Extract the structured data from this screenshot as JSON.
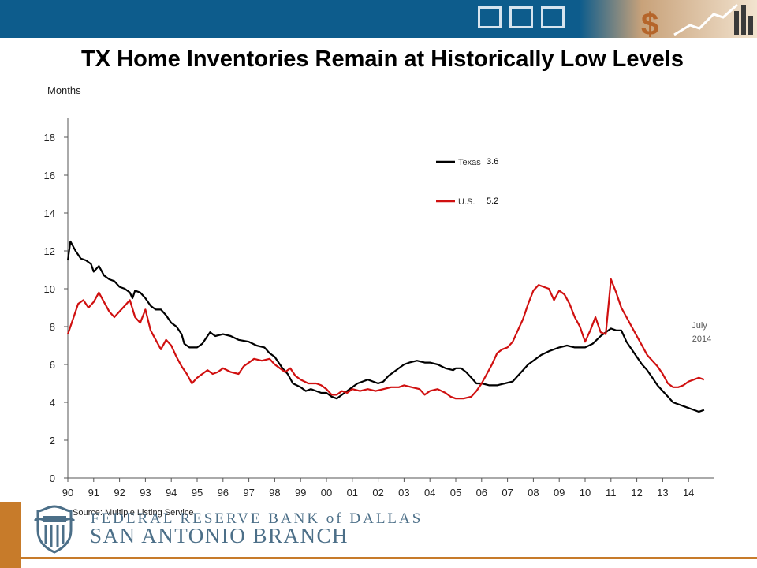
{
  "slide": {
    "title": "TX Home Inventories Remain at Historically Low Levels",
    "source": "Source: Multiple Listing Service",
    "footer_line1": "FEDERAL RESERVE BANK of DALLAS",
    "footer_line2": "SAN ANTONIO BRANCH"
  },
  "colors": {
    "topbar": "#0d5c8c",
    "accent_orange": "#c77b2a",
    "footer_text": "#4c6f88",
    "texas_series": "#000000",
    "us_series": "#d01010"
  },
  "chart_data": {
    "type": "line",
    "ylabel": "Months",
    "xlabel": "",
    "ylim": [
      0,
      19
    ],
    "yticks": [
      0,
      2,
      4,
      6,
      8,
      10,
      12,
      14,
      16,
      18
    ],
    "xlim": [
      1990,
      2015
    ],
    "xticks": [
      1990,
      1991,
      1992,
      1993,
      1994,
      1995,
      1996,
      1997,
      1998,
      1999,
      2000,
      2001,
      2002,
      2003,
      2004,
      2005,
      2006,
      2007,
      2008,
      2009,
      2010,
      2011,
      2012,
      2013,
      2014
    ],
    "xtick_labels": [
      "90",
      "91",
      "92",
      "93",
      "94",
      "95",
      "96",
      "97",
      "98",
      "99",
      "00",
      "01",
      "02",
      "03",
      "04",
      "05",
      "06",
      "07",
      "08",
      "09",
      "10",
      "11",
      "12",
      "13",
      "14"
    ],
    "grid": false,
    "legend": "top-center",
    "annotation": {
      "text_line1": "July",
      "text_line2": "2014",
      "x": 2014.5,
      "y": 7.7
    },
    "series": [
      {
        "name": "Texas",
        "latest_value_label": "3.6",
        "color": "#000000",
        "points": [
          [
            1990.0,
            11.5
          ],
          [
            1990.1,
            12.5
          ],
          [
            1990.3,
            12.0
          ],
          [
            1990.5,
            11.6
          ],
          [
            1990.7,
            11.5
          ],
          [
            1990.9,
            11.3
          ],
          [
            1991.0,
            10.9
          ],
          [
            1991.2,
            11.2
          ],
          [
            1991.4,
            10.7
          ],
          [
            1991.6,
            10.5
          ],
          [
            1991.8,
            10.4
          ],
          [
            1992.0,
            10.1
          ],
          [
            1992.2,
            10.0
          ],
          [
            1992.4,
            9.8
          ],
          [
            1992.5,
            9.5
          ],
          [
            1992.6,
            9.9
          ],
          [
            1992.8,
            9.8
          ],
          [
            1993.0,
            9.5
          ],
          [
            1993.2,
            9.1
          ],
          [
            1993.4,
            8.9
          ],
          [
            1993.6,
            8.9
          ],
          [
            1993.8,
            8.6
          ],
          [
            1994.0,
            8.2
          ],
          [
            1994.2,
            8.0
          ],
          [
            1994.4,
            7.6
          ],
          [
            1994.5,
            7.1
          ],
          [
            1994.7,
            6.9
          ],
          [
            1995.0,
            6.9
          ],
          [
            1995.2,
            7.1
          ],
          [
            1995.4,
            7.5
          ],
          [
            1995.5,
            7.7
          ],
          [
            1995.7,
            7.5
          ],
          [
            1996.0,
            7.6
          ],
          [
            1996.3,
            7.5
          ],
          [
            1996.6,
            7.3
          ],
          [
            1997.0,
            7.2
          ],
          [
            1997.3,
            7.0
          ],
          [
            1997.6,
            6.9
          ],
          [
            1997.8,
            6.6
          ],
          [
            1998.0,
            6.4
          ],
          [
            1998.3,
            5.8
          ],
          [
            1998.5,
            5.5
          ],
          [
            1998.7,
            5.0
          ],
          [
            1999.0,
            4.8
          ],
          [
            1999.2,
            4.6
          ],
          [
            1999.4,
            4.7
          ],
          [
            1999.6,
            4.6
          ],
          [
            1999.8,
            4.5
          ],
          [
            2000.0,
            4.5
          ],
          [
            2000.2,
            4.3
          ],
          [
            2000.4,
            4.2
          ],
          [
            2000.6,
            4.4
          ],
          [
            2000.8,
            4.6
          ],
          [
            2001.0,
            4.8
          ],
          [
            2001.2,
            5.0
          ],
          [
            2001.4,
            5.1
          ],
          [
            2001.6,
            5.2
          ],
          [
            2001.8,
            5.1
          ],
          [
            2002.0,
            5.0
          ],
          [
            2002.2,
            5.1
          ],
          [
            2002.4,
            5.4
          ],
          [
            2002.6,
            5.6
          ],
          [
            2002.8,
            5.8
          ],
          [
            2003.0,
            6.0
          ],
          [
            2003.2,
            6.1
          ],
          [
            2003.5,
            6.2
          ],
          [
            2003.8,
            6.1
          ],
          [
            2004.0,
            6.1
          ],
          [
            2004.3,
            6.0
          ],
          [
            2004.6,
            5.8
          ],
          [
            2004.9,
            5.7
          ],
          [
            2005.0,
            5.8
          ],
          [
            2005.2,
            5.8
          ],
          [
            2005.4,
            5.6
          ],
          [
            2005.6,
            5.3
          ],
          [
            2005.8,
            5.0
          ],
          [
            2006.0,
            5.0
          ],
          [
            2006.3,
            4.9
          ],
          [
            2006.6,
            4.9
          ],
          [
            2006.9,
            5.0
          ],
          [
            2007.2,
            5.1
          ],
          [
            2007.4,
            5.4
          ],
          [
            2007.6,
            5.7
          ],
          [
            2007.8,
            6.0
          ],
          [
            2008.0,
            6.2
          ],
          [
            2008.3,
            6.5
          ],
          [
            2008.6,
            6.7
          ],
          [
            2009.0,
            6.9
          ],
          [
            2009.3,
            7.0
          ],
          [
            2009.6,
            6.9
          ],
          [
            2010.0,
            6.9
          ],
          [
            2010.3,
            7.1
          ],
          [
            2010.6,
            7.5
          ],
          [
            2010.8,
            7.7
          ],
          [
            2011.0,
            7.9
          ],
          [
            2011.2,
            7.8
          ],
          [
            2011.4,
            7.8
          ],
          [
            2011.6,
            7.2
          ],
          [
            2011.8,
            6.8
          ],
          [
            2012.0,
            6.4
          ],
          [
            2012.2,
            6.0
          ],
          [
            2012.4,
            5.7
          ],
          [
            2012.6,
            5.3
          ],
          [
            2012.8,
            4.9
          ],
          [
            2013.0,
            4.6
          ],
          [
            2013.2,
            4.3
          ],
          [
            2013.4,
            4.0
          ],
          [
            2013.6,
            3.9
          ],
          [
            2013.8,
            3.8
          ],
          [
            2014.0,
            3.7
          ],
          [
            2014.2,
            3.6
          ],
          [
            2014.4,
            3.5
          ],
          [
            2014.6,
            3.6
          ]
        ]
      },
      {
        "name": "U.S.",
        "latest_value_label": "5.2",
        "color": "#d01010",
        "points": [
          [
            1990.0,
            7.6
          ],
          [
            1990.2,
            8.4
          ],
          [
            1990.4,
            9.2
          ],
          [
            1990.6,
            9.4
          ],
          [
            1990.8,
            9.0
          ],
          [
            1991.0,
            9.3
          ],
          [
            1991.2,
            9.8
          ],
          [
            1991.4,
            9.3
          ],
          [
            1991.6,
            8.8
          ],
          [
            1991.8,
            8.5
          ],
          [
            1992.0,
            8.8
          ],
          [
            1992.2,
            9.1
          ],
          [
            1992.4,
            9.4
          ],
          [
            1992.6,
            8.5
          ],
          [
            1992.8,
            8.2
          ],
          [
            1993.0,
            8.9
          ],
          [
            1993.2,
            7.8
          ],
          [
            1993.4,
            7.3
          ],
          [
            1993.6,
            6.8
          ],
          [
            1993.8,
            7.3
          ],
          [
            1994.0,
            7.0
          ],
          [
            1994.2,
            6.4
          ],
          [
            1994.4,
            5.9
          ],
          [
            1994.6,
            5.5
          ],
          [
            1994.8,
            5.0
          ],
          [
            1995.0,
            5.3
          ],
          [
            1995.2,
            5.5
          ],
          [
            1995.4,
            5.7
          ],
          [
            1995.6,
            5.5
          ],
          [
            1995.8,
            5.6
          ],
          [
            1996.0,
            5.8
          ],
          [
            1996.3,
            5.6
          ],
          [
            1996.6,
            5.5
          ],
          [
            1996.8,
            5.9
          ],
          [
            1997.0,
            6.1
          ],
          [
            1997.2,
            6.3
          ],
          [
            1997.5,
            6.2
          ],
          [
            1997.8,
            6.3
          ],
          [
            1998.0,
            6.0
          ],
          [
            1998.2,
            5.8
          ],
          [
            1998.4,
            5.6
          ],
          [
            1998.6,
            5.8
          ],
          [
            1998.8,
            5.4
          ],
          [
            1999.0,
            5.2
          ],
          [
            1999.3,
            5.0
          ],
          [
            1999.6,
            5.0
          ],
          [
            1999.8,
            4.9
          ],
          [
            2000.0,
            4.7
          ],
          [
            2000.2,
            4.4
          ],
          [
            2000.4,
            4.4
          ],
          [
            2000.6,
            4.6
          ],
          [
            2000.8,
            4.5
          ],
          [
            2001.0,
            4.7
          ],
          [
            2001.3,
            4.6
          ],
          [
            2001.6,
            4.7
          ],
          [
            2001.9,
            4.6
          ],
          [
            2002.2,
            4.7
          ],
          [
            2002.5,
            4.8
          ],
          [
            2002.8,
            4.8
          ],
          [
            2003.0,
            4.9
          ],
          [
            2003.3,
            4.8
          ],
          [
            2003.6,
            4.7
          ],
          [
            2003.8,
            4.4
          ],
          [
            2004.0,
            4.6
          ],
          [
            2004.3,
            4.7
          ],
          [
            2004.6,
            4.5
          ],
          [
            2004.8,
            4.3
          ],
          [
            2005.0,
            4.2
          ],
          [
            2005.3,
            4.2
          ],
          [
            2005.6,
            4.3
          ],
          [
            2005.8,
            4.6
          ],
          [
            2006.0,
            5.0
          ],
          [
            2006.2,
            5.5
          ],
          [
            2006.4,
            6.0
          ],
          [
            2006.6,
            6.6
          ],
          [
            2006.8,
            6.8
          ],
          [
            2007.0,
            6.9
          ],
          [
            2007.2,
            7.2
          ],
          [
            2007.4,
            7.8
          ],
          [
            2007.6,
            8.4
          ],
          [
            2007.8,
            9.2
          ],
          [
            2008.0,
            9.9
          ],
          [
            2008.2,
            10.2
          ],
          [
            2008.4,
            10.1
          ],
          [
            2008.6,
            10.0
          ],
          [
            2008.8,
            9.4
          ],
          [
            2009.0,
            9.9
          ],
          [
            2009.2,
            9.7
          ],
          [
            2009.4,
            9.2
          ],
          [
            2009.6,
            8.5
          ],
          [
            2009.8,
            8.0
          ],
          [
            2010.0,
            7.2
          ],
          [
            2010.2,
            7.8
          ],
          [
            2010.4,
            8.5
          ],
          [
            2010.6,
            7.7
          ],
          [
            2010.8,
            7.6
          ],
          [
            2011.0,
            10.5
          ],
          [
            2011.2,
            9.8
          ],
          [
            2011.4,
            9.0
          ],
          [
            2011.6,
            8.5
          ],
          [
            2011.8,
            8.0
          ],
          [
            2012.0,
            7.5
          ],
          [
            2012.2,
            7.0
          ],
          [
            2012.4,
            6.5
          ],
          [
            2012.6,
            6.2
          ],
          [
            2012.8,
            5.9
          ],
          [
            2013.0,
            5.5
          ],
          [
            2013.2,
            5.0
          ],
          [
            2013.4,
            4.8
          ],
          [
            2013.6,
            4.8
          ],
          [
            2013.8,
            4.9
          ],
          [
            2014.0,
            5.1
          ],
          [
            2014.2,
            5.2
          ],
          [
            2014.4,
            5.3
          ],
          [
            2014.6,
            5.2
          ]
        ]
      }
    ]
  }
}
